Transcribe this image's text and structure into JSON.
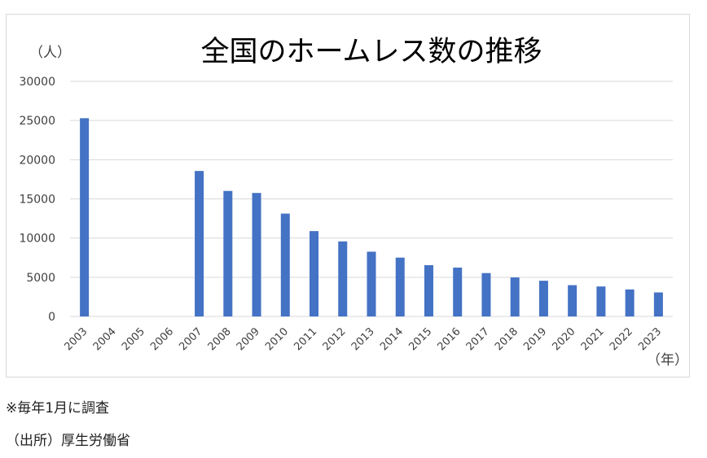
{
  "chart_data": {
    "type": "bar",
    "title": "全国のホームレス数の推移",
    "ylabel": "（人）",
    "xlabel": "（年）",
    "ylim": [
      0,
      30000
    ],
    "yticks": [
      0,
      5000,
      10000,
      15000,
      20000,
      25000,
      30000
    ],
    "grid": true,
    "categories": [
      "2003",
      "2004",
      "2005",
      "2006",
      "2007",
      "2008",
      "2009",
      "2010",
      "2011",
      "2012",
      "2013",
      "2014",
      "2015",
      "2016",
      "2017",
      "2018",
      "2019",
      "2020",
      "2021",
      "2022",
      "2023"
    ],
    "values": [
      25296,
      null,
      null,
      null,
      18564,
      16018,
      15759,
      13124,
      10890,
      9576,
      8265,
      7508,
      6541,
      6235,
      5534,
      4977,
      4555,
      3992,
      3824,
      3448,
      3065
    ],
    "colors": {
      "bar": "#4472c4",
      "grid": "#d9d9d9"
    }
  },
  "notes": {
    "survey": "※毎年1月に調査",
    "source": "（出所）厚生労働省"
  }
}
